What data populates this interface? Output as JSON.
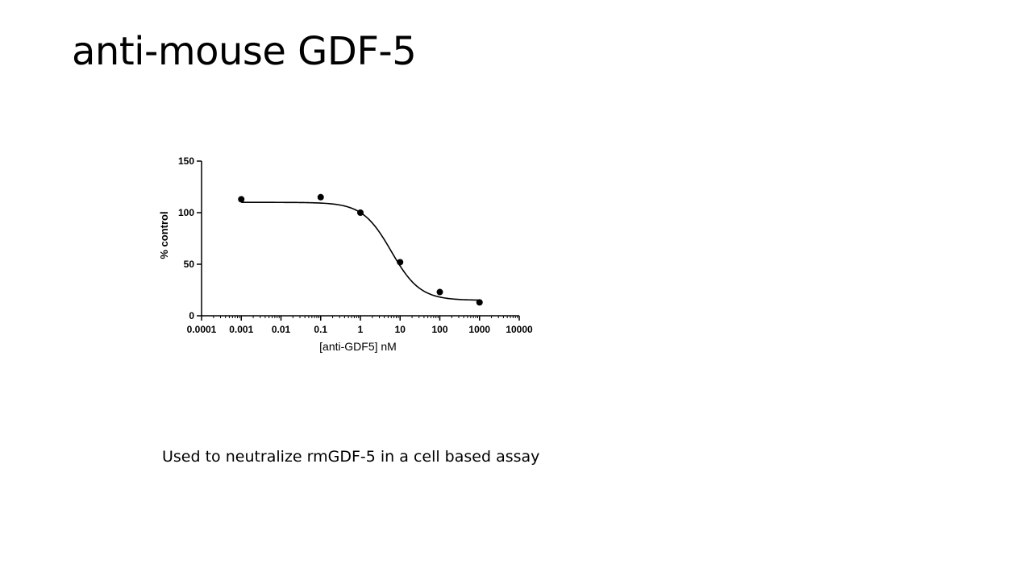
{
  "slide": {
    "title": "anti-mouse GDF-5",
    "caption": "Used to neutralize rmGDF-5 in a cell based assay"
  },
  "chart_data": {
    "type": "scatter",
    "xscale": "log",
    "xlabel": "[anti-GDF5] nM",
    "ylabel": "% control",
    "xlim": [
      0.0001,
      10000
    ],
    "ylim": [
      0,
      150
    ],
    "x_ticks": [
      "0.0001",
      "0.001",
      "0.01",
      "0.1",
      "1",
      "10",
      "100",
      "1000",
      "10000"
    ],
    "y_ticks": [
      "0",
      "50",
      "100",
      "150"
    ],
    "grid": false,
    "series": [
      {
        "points": [
          {
            "x": 0.001,
            "y": 113
          },
          {
            "x": 0.1,
            "y": 115
          },
          {
            "x": 1,
            "y": 100
          },
          {
            "x": 10,
            "y": 52
          },
          {
            "x": 100,
            "y": 23
          },
          {
            "x": 1000,
            "y": 13
          }
        ],
        "fit": {
          "type": "four-parameter-logistic",
          "top": 110,
          "bottom": 15,
          "ic50": 6,
          "hill": 1.2,
          "x_range": [
            0.001,
            1000
          ]
        },
        "color": "#000000"
      }
    ]
  }
}
